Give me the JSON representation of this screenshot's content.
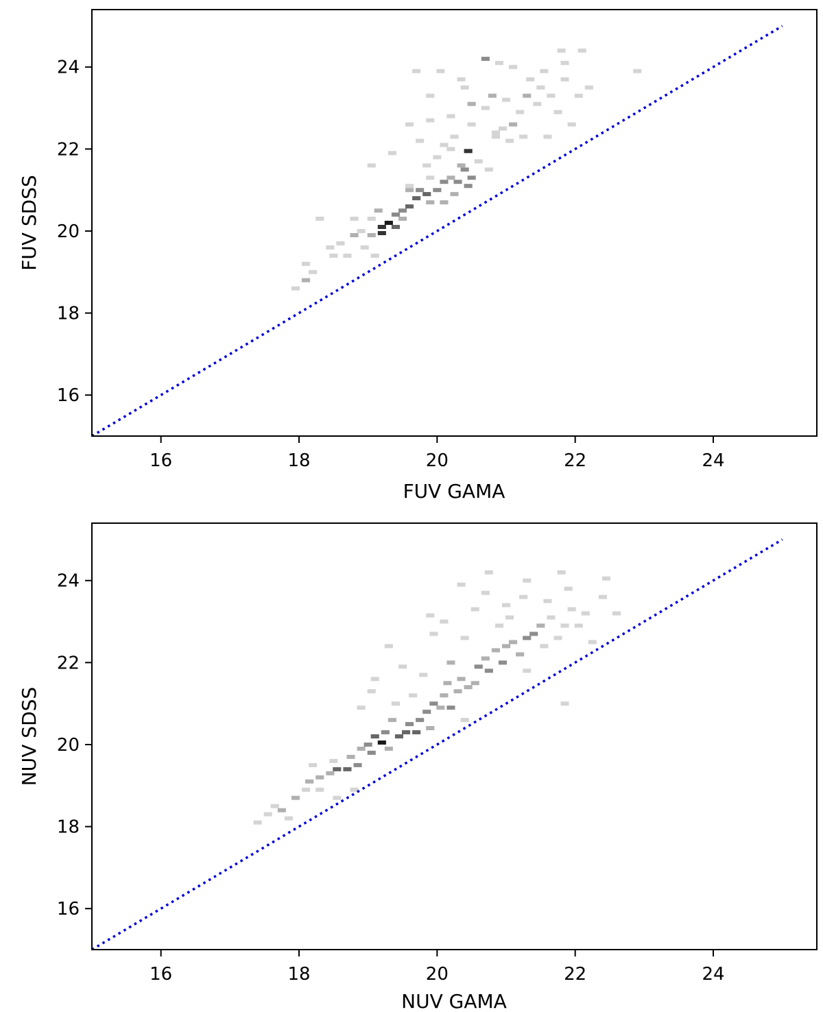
{
  "chart_data": [
    {
      "type": "heatmap",
      "xlabel": "FUV GAMA",
      "ylabel": "FUV SDSS",
      "xlim": [
        15,
        25.5
      ],
      "ylim": [
        15,
        25.4
      ],
      "xticks": [
        16,
        18,
        20,
        22,
        24
      ],
      "yticks": [
        16,
        18,
        20,
        22,
        24
      ],
      "xtick_labels": [
        "16",
        "18",
        "20",
        "22",
        "24"
      ],
      "ytick_labels": [
        "16",
        "18",
        "20",
        "22",
        "24"
      ],
      "reference_line": {
        "style": "dotted",
        "color": "#0000dd",
        "x": [
          15,
          25
        ],
        "y": [
          15,
          25
        ]
      },
      "bin_size": [
        0.12,
        0.1
      ],
      "cells": [
        [
          17.95,
          18.6,
          1
        ],
        [
          18.1,
          18.8,
          2
        ],
        [
          18.2,
          19.0,
          1
        ],
        [
          18.1,
          19.2,
          1
        ],
        [
          18.3,
          20.3,
          1
        ],
        [
          18.5,
          19.4,
          1
        ],
        [
          18.45,
          19.6,
          1
        ],
        [
          18.6,
          19.7,
          1
        ],
        [
          18.7,
          19.4,
          1
        ],
        [
          18.8,
          19.9,
          2
        ],
        [
          18.9,
          20.0,
          1
        ],
        [
          18.95,
          19.6,
          1
        ],
        [
          19.05,
          19.9,
          2
        ],
        [
          19.1,
          19.4,
          1
        ],
        [
          18.8,
          20.3,
          1
        ],
        [
          19.05,
          20.3,
          1
        ],
        [
          19.15,
          20.5,
          2
        ],
        [
          19.2,
          20.1,
          5
        ],
        [
          19.2,
          19.95,
          5
        ],
        [
          19.3,
          20.2,
          6
        ],
        [
          19.4,
          20.1,
          4
        ],
        [
          19.4,
          20.4,
          3
        ],
        [
          19.5,
          20.5,
          3
        ],
        [
          19.5,
          20.3,
          2
        ],
        [
          19.6,
          20.6,
          4
        ],
        [
          19.7,
          20.8,
          4
        ],
        [
          19.75,
          21.0,
          3
        ],
        [
          19.85,
          20.9,
          4
        ],
        [
          19.6,
          21.0,
          2
        ],
        [
          19.9,
          20.7,
          2
        ],
        [
          20.0,
          21.0,
          3
        ],
        [
          20.1,
          21.2,
          3
        ],
        [
          20.2,
          21.3,
          2
        ],
        [
          20.3,
          21.2,
          3
        ],
        [
          20.4,
          21.5,
          3
        ],
        [
          20.45,
          21.1,
          3
        ],
        [
          20.25,
          20.9,
          2
        ],
        [
          20.1,
          20.7,
          2
        ],
        [
          20.35,
          21.6,
          2
        ],
        [
          20.45,
          21.95,
          5
        ],
        [
          20.2,
          22.0,
          1
        ],
        [
          20.5,
          21.3,
          3
        ],
        [
          19.05,
          21.6,
          1
        ],
        [
          19.35,
          21.9,
          1
        ],
        [
          19.6,
          21.1,
          1
        ],
        [
          19.85,
          21.6,
          1
        ],
        [
          19.9,
          21.3,
          1
        ],
        [
          20.0,
          21.8,
          1
        ],
        [
          20.1,
          22.1,
          1
        ],
        [
          20.25,
          22.3,
          1
        ],
        [
          20.5,
          22.6,
          1
        ],
        [
          20.6,
          21.7,
          1
        ],
        [
          20.75,
          21.5,
          1
        ],
        [
          20.85,
          22.3,
          1
        ],
        [
          20.95,
          22.5,
          1
        ],
        [
          21.05,
          22.2,
          1
        ],
        [
          21.1,
          22.6,
          2
        ],
        [
          21.2,
          22.9,
          1
        ],
        [
          21.25,
          22.3,
          1
        ],
        [
          21.3,
          23.3,
          2
        ],
        [
          21.45,
          23.1,
          1
        ],
        [
          21.5,
          23.5,
          1
        ],
        [
          21.6,
          22.3,
          1
        ],
        [
          21.65,
          23.3,
          1
        ],
        [
          21.75,
          22.9,
          1
        ],
        [
          21.85,
          23.7,
          1
        ],
        [
          21.95,
          22.6,
          1
        ],
        [
          22.05,
          23.3,
          1
        ],
        [
          22.2,
          23.5,
          1
        ],
        [
          21.8,
          24.4,
          1
        ],
        [
          22.1,
          24.4,
          1
        ],
        [
          21.85,
          24.1,
          1
        ],
        [
          22.9,
          23.9,
          1
        ],
        [
          21.1,
          24.0,
          1
        ],
        [
          20.7,
          24.2,
          3
        ],
        [
          20.9,
          24.1,
          1
        ],
        [
          20.8,
          23.3,
          2
        ],
        [
          20.7,
          23.0,
          1
        ],
        [
          20.4,
          23.5,
          1
        ],
        [
          20.2,
          22.8,
          1
        ],
        [
          19.9,
          23.3,
          1
        ],
        [
          19.7,
          23.9,
          1
        ],
        [
          20.05,
          23.9,
          1
        ],
        [
          20.35,
          23.7,
          1
        ],
        [
          19.9,
          22.7,
          1
        ],
        [
          19.6,
          22.6,
          1
        ],
        [
          19.75,
          22.2,
          1
        ],
        [
          20.5,
          23.1,
          2
        ],
        [
          21.0,
          23.2,
          1
        ],
        [
          21.35,
          23.7,
          1
        ],
        [
          20.85,
          22.4,
          1
        ],
        [
          21.55,
          23.9,
          1
        ]
      ]
    },
    {
      "type": "heatmap",
      "xlabel": "NUV GAMA",
      "ylabel": "NUV SDSS",
      "xlim": [
        15,
        25.5
      ],
      "ylim": [
        15,
        25.4
      ],
      "xticks": [
        16,
        18,
        20,
        22,
        24
      ],
      "yticks": [
        16,
        18,
        20,
        22,
        24
      ],
      "xtick_labels": [
        "16",
        "18",
        "20",
        "22",
        "24"
      ],
      "ytick_labels": [
        "16",
        "18",
        "20",
        "22",
        "24"
      ],
      "reference_line": {
        "style": "dotted",
        "color": "#0000dd",
        "x": [
          15,
          25
        ],
        "y": [
          15,
          25
        ]
      },
      "bin_size": [
        0.12,
        0.1
      ],
      "cells": [
        [
          17.4,
          18.1,
          1
        ],
        [
          17.55,
          18.3,
          1
        ],
        [
          17.65,
          18.5,
          1
        ],
        [
          17.75,
          18.4,
          2
        ],
        [
          17.85,
          18.2,
          1
        ],
        [
          17.95,
          18.7,
          2
        ],
        [
          18.1,
          18.9,
          1
        ],
        [
          18.15,
          19.1,
          2
        ],
        [
          18.2,
          19.5,
          1
        ],
        [
          18.3,
          18.9,
          1
        ],
        [
          18.3,
          19.2,
          2
        ],
        [
          18.45,
          19.3,
          2
        ],
        [
          18.5,
          19.6,
          1
        ],
        [
          18.55,
          19.4,
          4
        ],
        [
          18.7,
          19.4,
          4
        ],
        [
          18.55,
          18.7,
          1
        ],
        [
          18.75,
          19.7,
          2
        ],
        [
          18.85,
          19.5,
          3
        ],
        [
          18.9,
          19.9,
          2
        ],
        [
          19.0,
          20.0,
          3
        ],
        [
          19.05,
          19.8,
          3
        ],
        [
          19.1,
          20.2,
          4
        ],
        [
          19.2,
          20.05,
          6
        ],
        [
          19.25,
          20.3,
          3
        ],
        [
          19.3,
          19.9,
          2
        ],
        [
          19.35,
          20.6,
          2
        ],
        [
          19.45,
          20.2,
          4
        ],
        [
          19.55,
          20.3,
          4
        ],
        [
          19.6,
          20.5,
          3
        ],
        [
          19.7,
          20.3,
          4
        ],
        [
          19.75,
          20.6,
          3
        ],
        [
          19.85,
          20.8,
          3
        ],
        [
          19.9,
          20.4,
          2
        ],
        [
          19.95,
          21.0,
          3
        ],
        [
          20.05,
          20.9,
          2
        ],
        [
          20.1,
          21.2,
          2
        ],
        [
          20.2,
          20.9,
          3
        ],
        [
          20.3,
          21.3,
          2
        ],
        [
          20.35,
          21.6,
          2
        ],
        [
          20.45,
          21.4,
          2
        ],
        [
          20.55,
          21.5,
          2
        ],
        [
          20.6,
          21.9,
          3
        ],
        [
          20.7,
          22.1,
          2
        ],
        [
          20.75,
          21.8,
          3
        ],
        [
          20.85,
          22.3,
          2
        ],
        [
          20.95,
          22.0,
          3
        ],
        [
          21.0,
          22.4,
          2
        ],
        [
          21.1,
          22.5,
          2
        ],
        [
          21.2,
          22.2,
          2
        ],
        [
          21.3,
          22.6,
          3
        ],
        [
          21.4,
          22.7,
          3
        ],
        [
          21.5,
          22.9,
          2
        ],
        [
          21.55,
          22.4,
          1
        ],
        [
          21.65,
          23.1,
          1
        ],
        [
          21.75,
          22.6,
          1
        ],
        [
          21.85,
          22.9,
          1
        ],
        [
          21.95,
          23.3,
          1
        ],
        [
          22.05,
          22.9,
          1
        ],
        [
          22.15,
          23.2,
          1
        ],
        [
          22.25,
          22.5,
          1
        ],
        [
          22.4,
          23.6,
          1
        ],
        [
          22.6,
          23.2,
          1
        ],
        [
          22.45,
          24.05,
          1
        ],
        [
          21.8,
          24.2,
          1
        ],
        [
          21.9,
          23.8,
          1
        ],
        [
          21.85,
          21.0,
          1
        ],
        [
          21.3,
          21.8,
          1
        ],
        [
          21.0,
          23.4,
          1
        ],
        [
          20.75,
          24.2,
          1
        ],
        [
          21.3,
          24.0,
          1
        ],
        [
          21.6,
          23.5,
          1
        ],
        [
          19.3,
          22.4,
          1
        ],
        [
          19.5,
          21.9,
          1
        ],
        [
          19.1,
          21.6,
          1
        ],
        [
          19.8,
          21.7,
          1
        ],
        [
          19.95,
          22.7,
          1
        ],
        [
          20.2,
          22.0,
          2
        ],
        [
          20.1,
          23.0,
          1
        ],
        [
          20.4,
          22.6,
          1
        ],
        [
          20.55,
          23.3,
          1
        ],
        [
          20.7,
          23.7,
          1
        ],
        [
          20.9,
          22.9,
          1
        ],
        [
          21.05,
          23.1,
          1
        ],
        [
          21.25,
          23.6,
          1
        ],
        [
          19.9,
          23.15,
          1
        ],
        [
          20.15,
          21.5,
          2
        ],
        [
          20.4,
          20.6,
          1
        ],
        [
          19.65,
          21.2,
          1
        ],
        [
          18.9,
          20.9,
          1
        ],
        [
          19.05,
          21.3,
          1
        ],
        [
          18.8,
          18.9,
          1
        ],
        [
          19.4,
          21.0,
          1
        ],
        [
          20.35,
          23.9,
          1
        ]
      ]
    }
  ]
}
